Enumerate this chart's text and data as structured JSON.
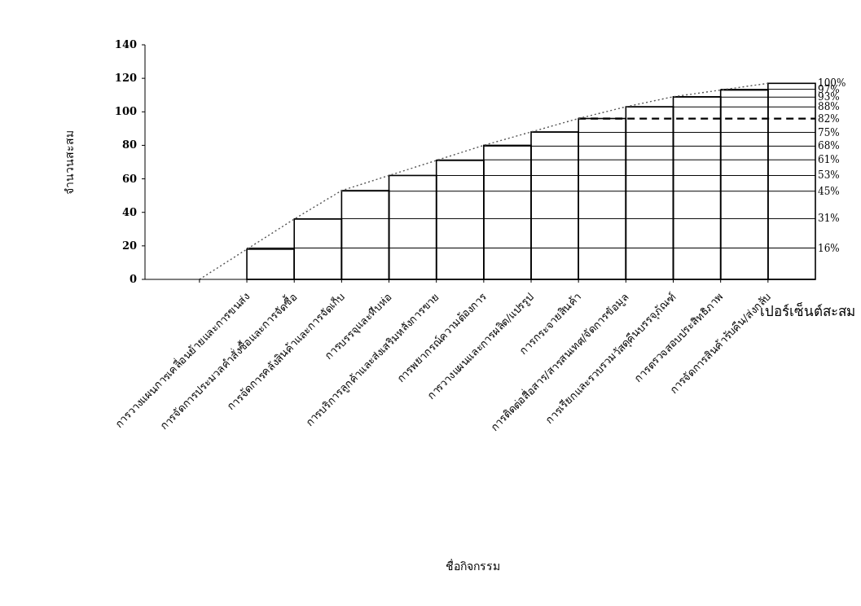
{
  "chart_data": {
    "type": "bar",
    "ylabel": "จำนวนสะสม",
    "annotations": [
      "เปอร์เซ็นต์สะสม",
      "ชื่อกิจกรรม"
    ],
    "categories": [
      null,
      "การวางแผนการเคลื่อนย้ายและการขนส่ง",
      "การจัดการประมวลคำสั่งซื้อและการจัดซื้อ",
      "การจัดการคลังสินค้าและการจัดเก็บ",
      "การบรรจุและหีบห่อ",
      "การบริการลูกค้าและส่งเสริมหลังการขาย",
      "การพยากรณ์ความต้องการ",
      "การวางแผนและการผลิต/แปรรูป",
      "การกระจายสินค้า",
      "การติดต่อสื่อสาร/สารสนเทศ/จัดการข้อมูล",
      "การเรียกและรวบรวมวัสดุคืนบรรจุภัณฑ์",
      "การตรวจสอบประสิทธิภาพ",
      "การจัดการสินค้ารับคืน/ส่งกลับ"
    ],
    "series": [
      {
        "color": "#000000",
        "values": [
          null,
          18,
          36,
          53,
          62,
          71,
          80,
          88,
          96,
          103,
          109,
          113,
          117
        ]
      },
      {
        "type": "line",
        "color": "#555555",
        "line_style": "dotted",
        "values": [
          0,
          18,
          36,
          53,
          62,
          71,
          80,
          88,
          96,
          103,
          109,
          113,
          117
        ]
      }
    ],
    "ylim": [
      0,
      140
    ],
    "yticks": [
      0,
      20,
      40,
      60,
      80,
      100,
      120,
      140
    ],
    "y2lim": [
      0,
      119.7
    ],
    "y2ticks": [
      {
        "value": 16,
        "label": "16%"
      },
      {
        "value": 31,
        "label": "31%"
      },
      {
        "value": 45,
        "label": "45%"
      },
      {
        "value": 53,
        "label": "53%"
      },
      {
        "value": 61,
        "label": "61%"
      },
      {
        "value": 68,
        "label": "68%"
      },
      {
        "value": 75,
        "label": "75%"
      },
      {
        "value": 82,
        "label": "82%"
      },
      {
        "value": 88,
        "label": "88%"
      },
      {
        "value": 93,
        "label": "93%"
      },
      {
        "value": 97,
        "label": "97%"
      },
      {
        "value": 100,
        "label": "100%"
      }
    ],
    "ref_lines": [
      {
        "axis": "y2",
        "value": 16
      },
      {
        "axis": "y2",
        "value": 31
      },
      {
        "axis": "y2",
        "value": 45
      },
      {
        "axis": "y2",
        "value": 53
      },
      {
        "axis": "y2",
        "value": 61
      },
      {
        "axis": "y2",
        "value": 68
      },
      {
        "axis": "y2",
        "value": 75
      },
      {
        "axis": "y2",
        "value": 82,
        "line_style": "dashed"
      },
      {
        "axis": "y2",
        "value": 88
      },
      {
        "axis": "y2",
        "value": 93
      },
      {
        "axis": "y2",
        "value": 97
      }
    ]
  }
}
